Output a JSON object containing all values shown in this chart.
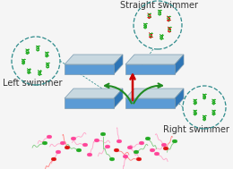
{
  "bg_color": "#f5f5f5",
  "text_straight": "Straight swimmer",
  "text_left": "Left swimmer",
  "text_right": "Right swimmer",
  "text_color": "#333333",
  "font_size_labels": 7.0,
  "platform_top_face": "#c8d8e0",
  "platform_front_face": "#5b9bd5",
  "platform_side_face": "#2e75b6",
  "platform_bottom_blue": "#1a5fa0",
  "dna_green": "#22aa22",
  "dna_red": "#dd1111",
  "arrow_green": "#228B22",
  "arrow_red": "#cc0000",
  "circle_color": "#2e8b8b",
  "sperm_pink": "#ff4499",
  "sperm_green_head": "#22aa22",
  "sperm_red_head": "#dd1111",
  "sperm_pink_tail": "#ffaacc",
  "sperm_green_tail": "#88cc88",
  "sperm_red_tail": "#ff8888"
}
